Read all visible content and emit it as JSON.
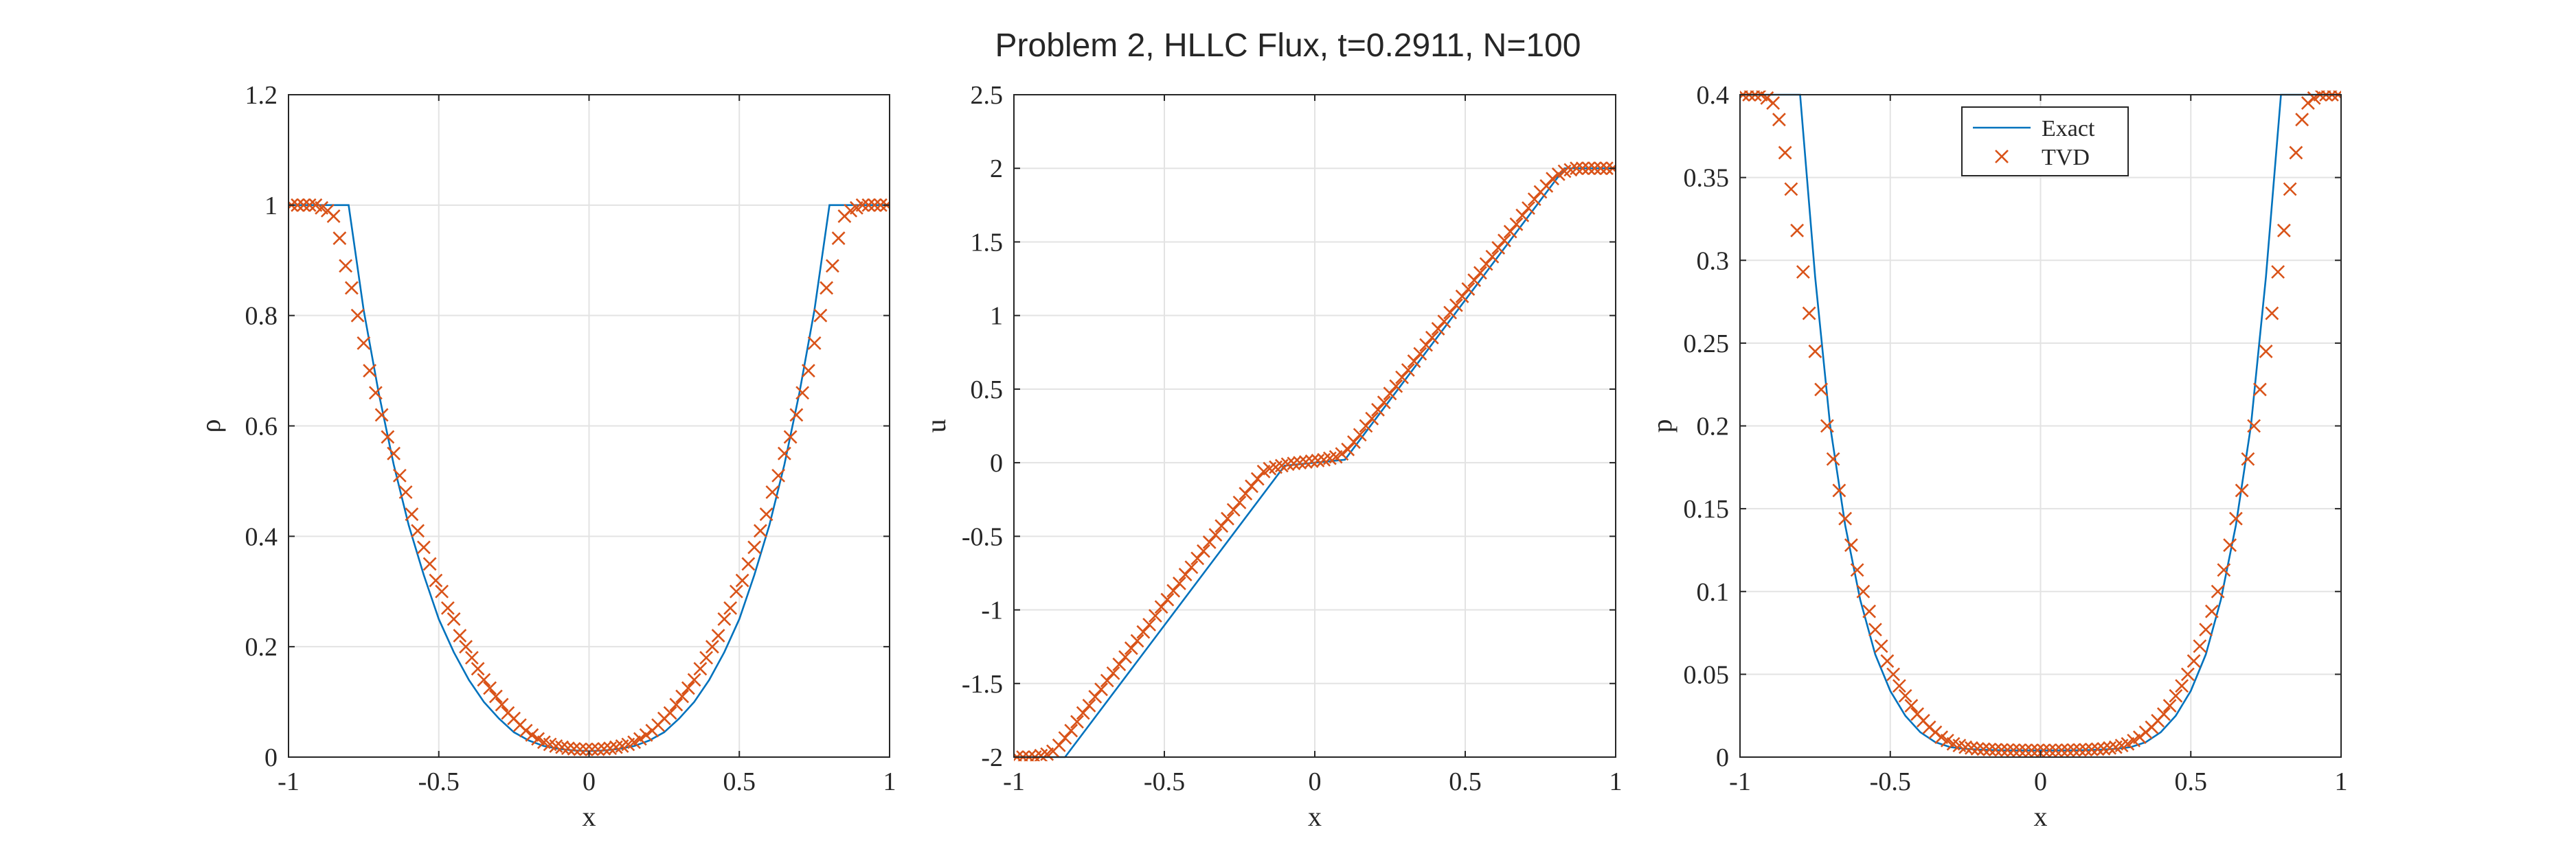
{
  "title": "Problem 2, HLLC Flux, t=0.2911, N=100",
  "legend": {
    "exact_label": "Exact",
    "tvd_label": "TVD",
    "placement": "top-center of third panel"
  },
  "colors": {
    "exact": "#0072BD",
    "tvd": "#D95319",
    "grid": "#e3e3e3",
    "axis": "#262626"
  },
  "chart_data": [
    {
      "type": "line",
      "title": "",
      "xlabel": "x",
      "ylabel": "ρ",
      "xlim": [
        -1,
        1
      ],
      "ylim": [
        0,
        1.2
      ],
      "xticks": [
        -1,
        -0.5,
        0,
        0.5,
        1
      ],
      "xtick_labels": [
        "-1",
        "-0.5",
        "0",
        "0.5",
        "1"
      ],
      "yticks": [
        0,
        0.2,
        0.4,
        0.6,
        0.8,
        1,
        1.2
      ],
      "ytick_labels": [
        "0",
        "0.2",
        "0.4",
        "0.6",
        "0.8",
        "1",
        "1.2"
      ],
      "grid": true,
      "series": [
        {
          "name": "Exact",
          "style": "line",
          "x": [
            -1,
            -0.8,
            -0.75,
            -0.7,
            -0.65,
            -0.6,
            -0.55,
            -0.5,
            -0.45,
            -0.4,
            -0.35,
            -0.3,
            -0.25,
            -0.2,
            -0.15,
            -0.1,
            -0.05,
            0,
            0.05,
            0.1,
            0.15,
            0.2,
            0.25,
            0.3,
            0.35,
            0.4,
            0.45,
            0.5,
            0.55,
            0.6,
            0.65,
            0.7,
            0.75,
            0.8,
            1
          ],
          "y": [
            1,
            1,
            0.81,
            0.66,
            0.53,
            0.42,
            0.33,
            0.25,
            0.19,
            0.14,
            0.1,
            0.07,
            0.045,
            0.03,
            0.02,
            0.015,
            0.012,
            0.011,
            0.012,
            0.015,
            0.02,
            0.03,
            0.045,
            0.07,
            0.1,
            0.14,
            0.19,
            0.25,
            0.33,
            0.42,
            0.53,
            0.66,
            0.81,
            1,
            1
          ]
        },
        {
          "name": "TVD",
          "style": "x-markers",
          "x": [
            -0.99,
            -0.97,
            -0.95,
            -0.93,
            -0.91,
            -0.89,
            -0.87,
            -0.85,
            -0.83,
            -0.81,
            -0.79,
            -0.77,
            -0.75,
            -0.73,
            -0.71,
            -0.69,
            -0.67,
            -0.65,
            -0.63,
            -0.61,
            -0.59,
            -0.57,
            -0.55,
            -0.53,
            -0.51,
            -0.49,
            -0.47,
            -0.45,
            -0.43,
            -0.41,
            -0.39,
            -0.37,
            -0.35,
            -0.33,
            -0.31,
            -0.29,
            -0.27,
            -0.25,
            -0.23,
            -0.21,
            -0.19,
            -0.17,
            -0.15,
            -0.13,
            -0.11,
            -0.09,
            -0.07,
            -0.05,
            -0.03,
            -0.01,
            0.01,
            0.03,
            0.05,
            0.07,
            0.09,
            0.11,
            0.13,
            0.15,
            0.17,
            0.19,
            0.21,
            0.23,
            0.25,
            0.27,
            0.29,
            0.31,
            0.33,
            0.35,
            0.37,
            0.39,
            0.41,
            0.43,
            0.45,
            0.47,
            0.49,
            0.51,
            0.53,
            0.55,
            0.57,
            0.59,
            0.61,
            0.63,
            0.65,
            0.67,
            0.69,
            0.71,
            0.73,
            0.75,
            0.77,
            0.79,
            0.81,
            0.83,
            0.85,
            0.87,
            0.89,
            0.91,
            0.93,
            0.95,
            0.97,
            0.99
          ],
          "y": [
            1,
            1,
            1,
            1,
            1,
            0.995,
            0.99,
            0.98,
            0.94,
            0.89,
            0.85,
            0.8,
            0.75,
            0.7,
            0.66,
            0.62,
            0.58,
            0.55,
            0.51,
            0.48,
            0.44,
            0.41,
            0.38,
            0.35,
            0.32,
            0.3,
            0.27,
            0.25,
            0.22,
            0.2,
            0.18,
            0.16,
            0.14,
            0.125,
            0.11,
            0.095,
            0.08,
            0.07,
            0.058,
            0.048,
            0.04,
            0.033,
            0.027,
            0.023,
            0.02,
            0.018,
            0.016,
            0.015,
            0.014,
            0.014,
            0.014,
            0.014,
            0.015,
            0.016,
            0.018,
            0.02,
            0.023,
            0.027,
            0.033,
            0.04,
            0.048,
            0.058,
            0.07,
            0.08,
            0.095,
            0.11,
            0.125,
            0.14,
            0.16,
            0.18,
            0.2,
            0.22,
            0.25,
            0.27,
            0.3,
            0.32,
            0.35,
            0.38,
            0.41,
            0.44,
            0.48,
            0.51,
            0.55,
            0.58,
            0.62,
            0.66,
            0.7,
            0.75,
            0.8,
            0.85,
            0.89,
            0.94,
            0.98,
            0.99,
            0.995,
            1,
            1,
            1,
            1,
            1
          ]
        }
      ]
    },
    {
      "type": "line",
      "title": "",
      "xlabel": "x",
      "ylabel": "u",
      "xlim": [
        -1,
        1
      ],
      "ylim": [
        -2,
        2.5
      ],
      "xticks": [
        -1,
        -0.5,
        0,
        0.5,
        1
      ],
      "xtick_labels": [
        "-1",
        "-0.5",
        "0",
        "0.5",
        "1"
      ],
      "yticks": [
        -2,
        -1.5,
        -1,
        -0.5,
        0,
        0.5,
        1,
        1.5,
        2,
        2.5
      ],
      "ytick_labels": [
        "-2",
        "-1.5",
        "-1",
        "-0.5",
        "0",
        "0.5",
        "1",
        "1.5",
        "2",
        "2.5"
      ],
      "grid": true,
      "series": [
        {
          "name": "Exact",
          "style": "line",
          "x": [
            -1,
            -0.83,
            -0.1,
            0.1,
            0.83,
            1
          ],
          "y": [
            -2,
            -2,
            -0.02,
            0.02,
            2,
            2
          ]
        },
        {
          "name": "TVD",
          "style": "x-markers",
          "x": [
            -0.99,
            -0.97,
            -0.95,
            -0.93,
            -0.91,
            -0.89,
            -0.87,
            -0.85,
            -0.83,
            -0.81,
            -0.79,
            -0.77,
            -0.75,
            -0.73,
            -0.71,
            -0.69,
            -0.67,
            -0.65,
            -0.63,
            -0.61,
            -0.59,
            -0.57,
            -0.55,
            -0.53,
            -0.51,
            -0.49,
            -0.47,
            -0.45,
            -0.43,
            -0.41,
            -0.39,
            -0.37,
            -0.35,
            -0.33,
            -0.31,
            -0.29,
            -0.27,
            -0.25,
            -0.23,
            -0.21,
            -0.19,
            -0.17,
            -0.15,
            -0.13,
            -0.11,
            -0.09,
            -0.07,
            -0.05,
            -0.03,
            -0.01,
            0.01,
            0.03,
            0.05,
            0.07,
            0.09,
            0.11,
            0.13,
            0.15,
            0.17,
            0.19,
            0.21,
            0.23,
            0.25,
            0.27,
            0.29,
            0.31,
            0.33,
            0.35,
            0.37,
            0.39,
            0.41,
            0.43,
            0.45,
            0.47,
            0.49,
            0.51,
            0.53,
            0.55,
            0.57,
            0.59,
            0.61,
            0.63,
            0.65,
            0.67,
            0.69,
            0.71,
            0.73,
            0.75,
            0.77,
            0.79,
            0.81,
            0.83,
            0.85,
            0.87,
            0.89,
            0.91,
            0.93,
            0.95,
            0.97,
            0.99
          ],
          "y": [
            -2,
            -2,
            -2,
            -2,
            -1.99,
            -1.98,
            -1.96,
            -1.92,
            -1.87,
            -1.82,
            -1.76,
            -1.7,
            -1.65,
            -1.59,
            -1.54,
            -1.48,
            -1.43,
            -1.37,
            -1.32,
            -1.26,
            -1.21,
            -1.15,
            -1.1,
            -1.04,
            -0.98,
            -0.93,
            -0.87,
            -0.82,
            -0.76,
            -0.71,
            -0.65,
            -0.6,
            -0.54,
            -0.49,
            -0.43,
            -0.38,
            -0.32,
            -0.27,
            -0.21,
            -0.16,
            -0.11,
            -0.06,
            -0.04,
            -0.03,
            -0.02,
            -0.01,
            -0.005,
            0,
            0.005,
            0.01,
            0.015,
            0.02,
            0.03,
            0.04,
            0.06,
            0.09,
            0.14,
            0.19,
            0.25,
            0.3,
            0.36,
            0.41,
            0.47,
            0.52,
            0.58,
            0.63,
            0.69,
            0.74,
            0.8,
            0.85,
            0.91,
            0.96,
            1.02,
            1.07,
            1.13,
            1.18,
            1.24,
            1.29,
            1.35,
            1.4,
            1.46,
            1.51,
            1.57,
            1.62,
            1.68,
            1.73,
            1.79,
            1.84,
            1.88,
            1.93,
            1.96,
            1.98,
            1.99,
            2,
            2,
            2,
            2,
            2,
            2,
            2
          ]
        }
      ]
    },
    {
      "type": "line",
      "title": "",
      "xlabel": "x",
      "ylabel": "p",
      "xlim": [
        -1,
        1
      ],
      "ylim": [
        0,
        0.4
      ],
      "xticks": [
        -1,
        -0.5,
        0,
        0.5,
        1
      ],
      "xtick_labels": [
        "-1",
        "-0.5",
        "0",
        "0.5",
        "1"
      ],
      "yticks": [
        0,
        0.05,
        0.1,
        0.15,
        0.2,
        0.25,
        0.3,
        0.35,
        0.4
      ],
      "ytick_labels": [
        "0",
        "0.05",
        "0.1",
        "0.15",
        "0.2",
        "0.25",
        "0.3",
        "0.35",
        "0.4"
      ],
      "grid": true,
      "legend": true,
      "series": [
        {
          "name": "Exact",
          "style": "line",
          "x": [
            -1,
            -0.8,
            -0.75,
            -0.7,
            -0.65,
            -0.6,
            -0.55,
            -0.5,
            -0.45,
            -0.4,
            -0.35,
            -0.3,
            -0.25,
            -0.2,
            -0.15,
            -0.1,
            -0.05,
            0,
            0.05,
            0.1,
            0.15,
            0.2,
            0.25,
            0.3,
            0.35,
            0.4,
            0.45,
            0.5,
            0.55,
            0.6,
            0.65,
            0.7,
            0.75,
            0.8,
            1
          ],
          "y": [
            0.4,
            0.4,
            0.29,
            0.2,
            0.14,
            0.095,
            0.062,
            0.04,
            0.025,
            0.015,
            0.009,
            0.006,
            0.005,
            0.0045,
            0.0042,
            0.004,
            0.004,
            0.004,
            0.004,
            0.004,
            0.0042,
            0.0045,
            0.005,
            0.006,
            0.009,
            0.015,
            0.025,
            0.04,
            0.062,
            0.095,
            0.14,
            0.2,
            0.29,
            0.4,
            0.4
          ]
        },
        {
          "name": "TVD",
          "style": "x-markers",
          "x": [
            -0.99,
            -0.97,
            -0.95,
            -0.93,
            -0.91,
            -0.89,
            -0.87,
            -0.85,
            -0.83,
            -0.81,
            -0.79,
            -0.77,
            -0.75,
            -0.73,
            -0.71,
            -0.69,
            -0.67,
            -0.65,
            -0.63,
            -0.61,
            -0.59,
            -0.57,
            -0.55,
            -0.53,
            -0.51,
            -0.49,
            -0.47,
            -0.45,
            -0.43,
            -0.41,
            -0.39,
            -0.37,
            -0.35,
            -0.33,
            -0.31,
            -0.29,
            -0.27,
            -0.25,
            -0.23,
            -0.21,
            -0.19,
            -0.17,
            -0.15,
            -0.13,
            -0.11,
            -0.09,
            -0.07,
            -0.05,
            -0.03,
            -0.01,
            0.01,
            0.03,
            0.05,
            0.07,
            0.09,
            0.11,
            0.13,
            0.15,
            0.17,
            0.19,
            0.21,
            0.23,
            0.25,
            0.27,
            0.29,
            0.31,
            0.33,
            0.35,
            0.37,
            0.39,
            0.41,
            0.43,
            0.45,
            0.47,
            0.49,
            0.51,
            0.53,
            0.55,
            0.57,
            0.59,
            0.61,
            0.63,
            0.65,
            0.67,
            0.69,
            0.71,
            0.73,
            0.75,
            0.77,
            0.79,
            0.81,
            0.83,
            0.85,
            0.87,
            0.89,
            0.91,
            0.93,
            0.95,
            0.97,
            0.99
          ],
          "y": [
            0.4,
            0.4,
            0.4,
            0.4,
            0.398,
            0.395,
            0.385,
            0.365,
            0.343,
            0.318,
            0.293,
            0.268,
            0.245,
            0.222,
            0.2,
            0.18,
            0.161,
            0.144,
            0.128,
            0.113,
            0.1,
            0.088,
            0.077,
            0.067,
            0.058,
            0.05,
            0.043,
            0.037,
            0.031,
            0.026,
            0.022,
            0.018,
            0.015,
            0.012,
            0.01,
            0.008,
            0.007,
            0.006,
            0.0055,
            0.005,
            0.0048,
            0.0046,
            0.0045,
            0.0044,
            0.0043,
            0.0042,
            0.0042,
            0.0041,
            0.0041,
            0.0041,
            0.0041,
            0.0041,
            0.0041,
            0.0042,
            0.0042,
            0.0043,
            0.0044,
            0.0045,
            0.0046,
            0.0048,
            0.005,
            0.0055,
            0.006,
            0.007,
            0.008,
            0.01,
            0.012,
            0.015,
            0.018,
            0.022,
            0.026,
            0.031,
            0.037,
            0.043,
            0.05,
            0.058,
            0.067,
            0.077,
            0.088,
            0.1,
            0.113,
            0.128,
            0.144,
            0.161,
            0.18,
            0.2,
            0.222,
            0.245,
            0.268,
            0.293,
            0.318,
            0.343,
            0.365,
            0.385,
            0.395,
            0.398,
            0.4,
            0.4,
            0.4,
            0.4
          ]
        }
      ]
    }
  ]
}
